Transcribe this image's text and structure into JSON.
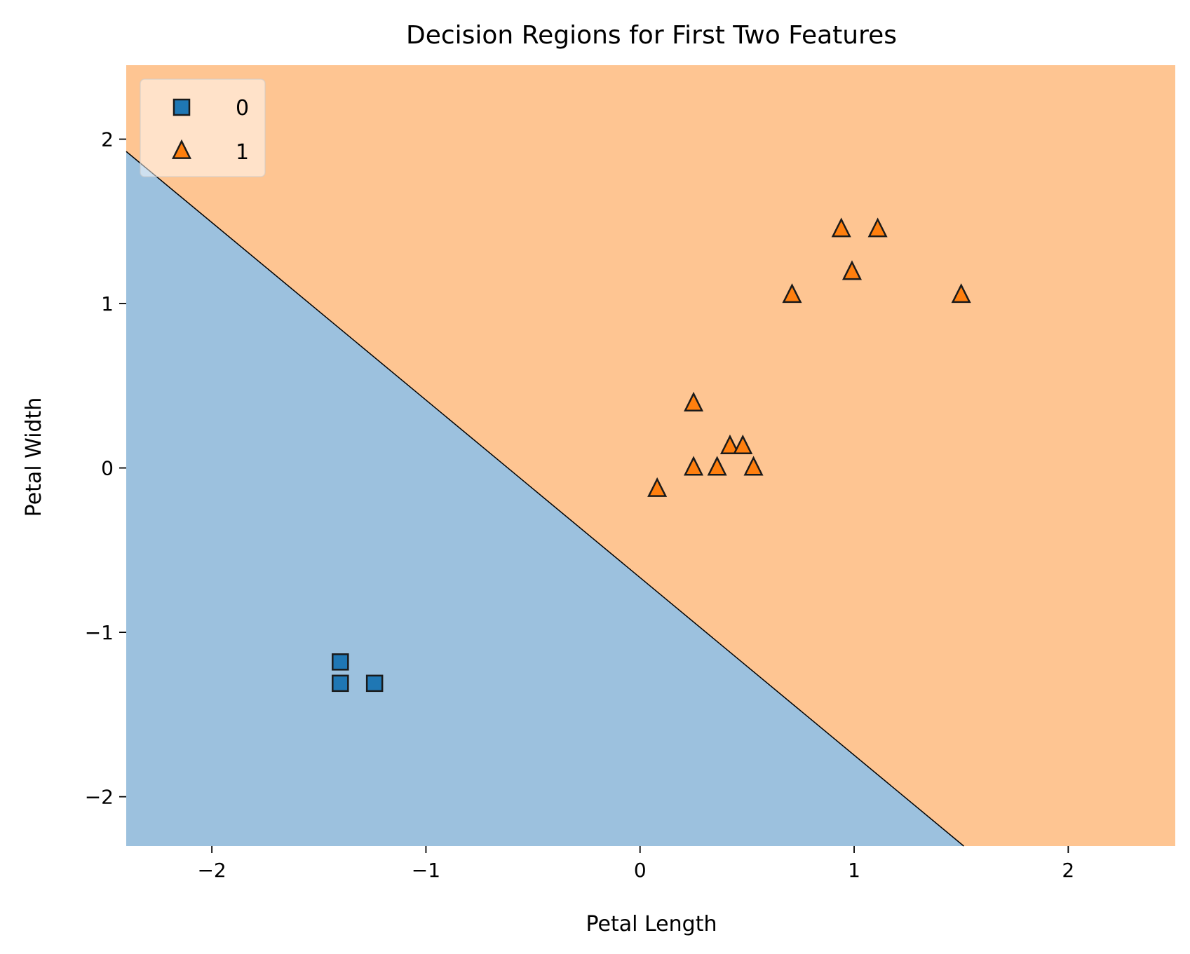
{
  "chart_data": {
    "type": "scatter",
    "title": "Decision Regions for First Two Features",
    "xlabel": "Petal Length",
    "ylabel": "Petal Width",
    "xlim": [
      -2.4,
      2.5
    ],
    "ylim": [
      -2.3,
      2.45
    ],
    "xticks": [
      -2,
      -1,
      0,
      1,
      2
    ],
    "yticks": [
      -2,
      -1,
      0,
      1,
      2
    ],
    "grid": false,
    "legend_position": "top-left",
    "decision_boundary": {
      "slope": -1.08,
      "intercept": -0.667
    },
    "region_colors": {
      "0": "#9cc1de",
      "1": "#fec592"
    },
    "series": [
      {
        "name": "0",
        "marker": "square",
        "color": "#1f77b4",
        "points": [
          {
            "x": -1.4,
            "y": -1.18
          },
          {
            "x": -1.4,
            "y": -1.31
          },
          {
            "x": -1.24,
            "y": -1.31
          }
        ]
      },
      {
        "name": "1",
        "marker": "triangle",
        "color": "#ff7f0e",
        "points": [
          {
            "x": 0.94,
            "y": 1.45
          },
          {
            "x": 1.11,
            "y": 1.45
          },
          {
            "x": 0.99,
            "y": 1.19
          },
          {
            "x": 0.71,
            "y": 1.05
          },
          {
            "x": 1.5,
            "y": 1.05
          },
          {
            "x": 0.25,
            "y": 0.39
          },
          {
            "x": 0.42,
            "y": 0.13
          },
          {
            "x": 0.48,
            "y": 0.13
          },
          {
            "x": 0.25,
            "y": 0.0
          },
          {
            "x": 0.36,
            "y": 0.0
          },
          {
            "x": 0.53,
            "y": 0.0
          },
          {
            "x": 0.08,
            "y": -0.13
          }
        ]
      }
    ]
  }
}
